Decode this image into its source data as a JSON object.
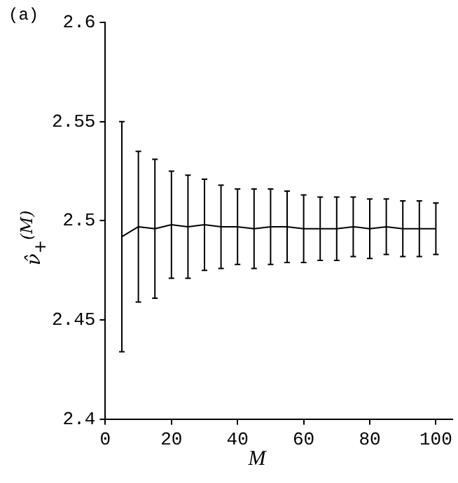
{
  "chart_data": {
    "type": "line",
    "xlabel": "M",
    "ylabel": "ν̂$_{+}$$^{(M)}$",
    "annotations": [
      "(a)"
    ],
    "x": [
      5,
      10,
      15,
      20,
      25,
      30,
      35,
      40,
      45,
      50,
      55,
      60,
      65,
      70,
      75,
      80,
      85,
      90,
      95,
      100
    ],
    "series": [
      {
        "color": "#000000",
        "values": [
          2.492,
          2.497,
          2.496,
          2.498,
          2.497,
          2.498,
          2.497,
          2.497,
          2.496,
          2.497,
          2.497,
          2.496,
          2.496,
          2.496,
          2.497,
          2.496,
          2.497,
          2.496,
          2.496,
          2.496
        ],
        "errors": [
          0.058,
          0.038,
          0.035,
          0.027,
          0.026,
          0.023,
          0.021,
          0.019,
          0.02,
          0.019,
          0.018,
          0.017,
          0.016,
          0.016,
          0.015,
          0.015,
          0.014,
          0.014,
          0.014,
          0.013
        ]
      }
    ],
    "xlim": [
      0,
      105
    ],
    "xticks": [
      0,
      20,
      40,
      60,
      80,
      100
    ],
    "ylim": [
      2.4,
      2.6
    ],
    "yticks": [
      2.4,
      2.45,
      2.5,
      2.55,
      2.6
    ],
    "grid": false,
    "legend": false,
    "marker": "none",
    "line_style": "solid"
  }
}
